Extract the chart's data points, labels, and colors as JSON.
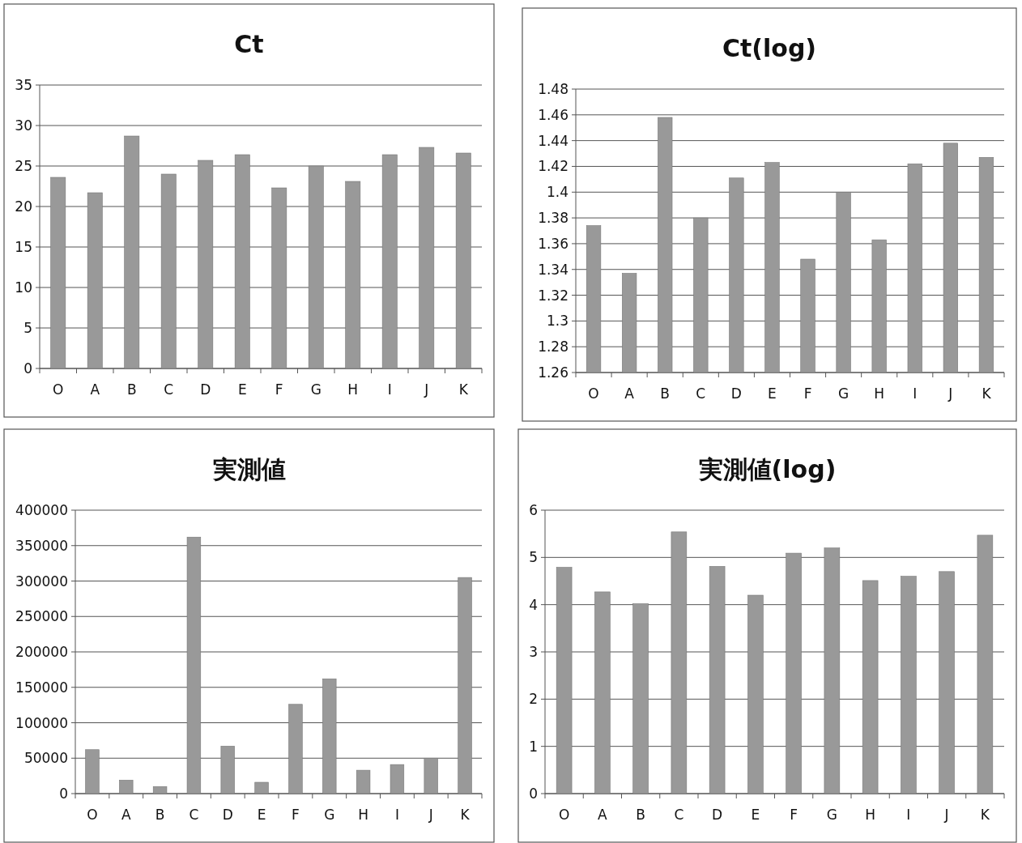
{
  "chart_data": [
    {
      "type": "bar",
      "title": "Ct",
      "categories": [
        "O",
        "A",
        "B",
        "C",
        "D",
        "E",
        "F",
        "G",
        "H",
        "I",
        "J",
        "K"
      ],
      "values": [
        23.6,
        21.7,
        28.7,
        24.0,
        25.7,
        26.4,
        22.3,
        25.0,
        23.1,
        26.4,
        27.3,
        26.6
      ],
      "color": "#999999",
      "ylim": [
        0,
        35
      ],
      "yticks": [
        0,
        5,
        10,
        15,
        20,
        25,
        30,
        35
      ],
      "grid": "y"
    },
    {
      "type": "bar",
      "title": "Ct(log)",
      "categories": [
        "O",
        "A",
        "B",
        "C",
        "D",
        "E",
        "F",
        "G",
        "H",
        "I",
        "J",
        "K"
      ],
      "values": [
        1.374,
        1.337,
        1.458,
        1.38,
        1.411,
        1.423,
        1.348,
        1.4,
        1.363,
        1.422,
        1.438,
        1.427
      ],
      "color": "#999999",
      "ylim": [
        1.26,
        1.48
      ],
      "yticks": [
        1.26,
        1.28,
        1.3,
        1.32,
        1.34,
        1.36,
        1.38,
        1.4,
        1.42,
        1.44,
        1.46,
        1.48
      ],
      "grid": "y"
    },
    {
      "type": "bar",
      "title": "実測値",
      "categories": [
        "O",
        "A",
        "B",
        "C",
        "D",
        "E",
        "F",
        "G",
        "H",
        "I",
        "J",
        "K"
      ],
      "values": [
        62000,
        19000,
        10000,
        362000,
        67000,
        16000,
        126000,
        162000,
        33000,
        41000,
        50000,
        305000
      ],
      "color": "#999999",
      "ylim": [
        0,
        400000
      ],
      "yticks": [
        0,
        50000,
        100000,
        150000,
        200000,
        250000,
        300000,
        350000,
        400000
      ],
      "grid": "y"
    },
    {
      "type": "bar",
      "title": "実測値(log)",
      "categories": [
        "O",
        "A",
        "B",
        "C",
        "D",
        "E",
        "F",
        "G",
        "H",
        "I",
        "J",
        "K"
      ],
      "values": [
        4.79,
        4.27,
        4.02,
        5.54,
        4.81,
        4.2,
        5.09,
        5.2,
        4.51,
        4.6,
        4.7,
        5.47
      ],
      "color": "#999999",
      "ylim": [
        0,
        6
      ],
      "yticks": [
        0,
        1,
        2,
        3,
        4,
        5,
        6
      ],
      "grid": "y"
    }
  ]
}
